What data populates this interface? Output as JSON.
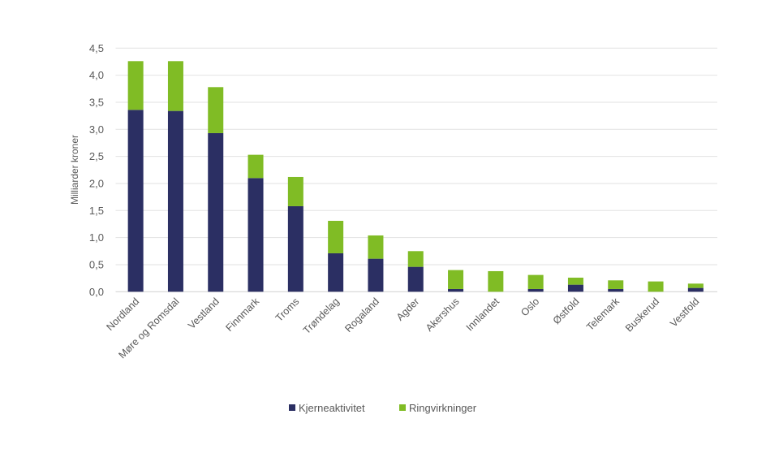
{
  "chart_data": {
    "type": "bar",
    "stacked": true,
    "title": "",
    "xlabel": "",
    "ylabel": "Milliarder kroner",
    "ylim": [
      0,
      4.5
    ],
    "yticks": [
      "0,0",
      "0,5",
      "1,0",
      "1,5",
      "2,0",
      "2,5",
      "3,0",
      "3,5",
      "4,0",
      "4,5"
    ],
    "grid": true,
    "legend_position": "bottom",
    "categories": [
      "Nordland",
      "Møre og Romsdal",
      "Vestland",
      "Finnmark",
      "Troms",
      "Trøndelag",
      "Rogaland",
      "Agder",
      "Akershus",
      "Innlandet",
      "Oslo",
      "Østfold",
      "Telemark",
      "Buskerud",
      "Vestfold"
    ],
    "series": [
      {
        "name": "Kjerneaktivitet",
        "color": "#2b2f63",
        "values": [
          3.36,
          3.34,
          2.93,
          2.1,
          1.58,
          0.71,
          0.61,
          0.46,
          0.05,
          0.0,
          0.05,
          0.13,
          0.05,
          0.0,
          0.07
        ]
      },
      {
        "name": "Ringvirkninger",
        "color": "#80bc25",
        "values": [
          0.9,
          0.92,
          0.85,
          0.43,
          0.54,
          0.6,
          0.43,
          0.29,
          0.35,
          0.38,
          0.26,
          0.13,
          0.16,
          0.19,
          0.08
        ]
      }
    ]
  }
}
